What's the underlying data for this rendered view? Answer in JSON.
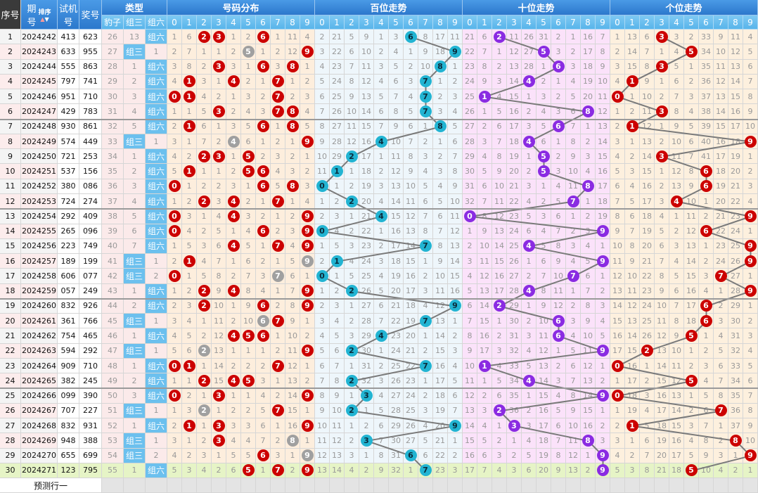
{
  "headers": {
    "seq": "序号",
    "issue_top": "期",
    "issue_bottom": "号",
    "sort": "排序",
    "test_top": "试机",
    "test_bottom": "号",
    "draw": "奖号",
    "type": "类型",
    "dist": "号码分布",
    "hundreds": "百位走势",
    "tens": "十位走势",
    "units": "个位走势",
    "type_cols": [
      "豹子",
      "组三",
      "组六"
    ],
    "digits": [
      "0",
      "1",
      "2",
      "3",
      "4",
      "5",
      "6",
      "7",
      "8",
      "9"
    ]
  },
  "type_labels": [
    "豹子",
    "组三",
    "组六"
  ],
  "rows": [
    {
      "seq": "1",
      "issue": "2024242",
      "test": "413",
      "draw": "623"
    },
    {
      "seq": "2",
      "issue": "2024243",
      "test": "633",
      "draw": "955"
    },
    {
      "seq": "3",
      "issue": "2024244",
      "test": "555",
      "draw": "863"
    },
    {
      "seq": "4",
      "issue": "2024245",
      "test": "797",
      "draw": "741"
    },
    {
      "seq": "5",
      "issue": "2024246",
      "test": "951",
      "draw": "710"
    },
    {
      "seq": "6",
      "issue": "2024247",
      "test": "429",
      "draw": "783"
    },
    {
      "seq": "7",
      "issue": "2024248",
      "test": "930",
      "draw": "861"
    },
    {
      "seq": "8",
      "issue": "2024249",
      "test": "574",
      "draw": "449"
    },
    {
      "seq": "9",
      "issue": "2024250",
      "test": "721",
      "draw": "253"
    },
    {
      "seq": "10",
      "issue": "2024251",
      "test": "537",
      "draw": "156"
    },
    {
      "seq": "11",
      "issue": "2024252",
      "test": "380",
      "draw": "086"
    },
    {
      "seq": "12",
      "issue": "2024253",
      "test": "724",
      "draw": "274"
    },
    {
      "seq": "13",
      "issue": "2024254",
      "test": "292",
      "draw": "409"
    },
    {
      "seq": "14",
      "issue": "2024255",
      "test": "265",
      "draw": "096"
    },
    {
      "seq": "15",
      "issue": "2024256",
      "test": "223",
      "draw": "749"
    },
    {
      "seq": "16",
      "issue": "2024257",
      "test": "189",
      "draw": "199"
    },
    {
      "seq": "17",
      "issue": "2024258",
      "test": "606",
      "draw": "077"
    },
    {
      "seq": "18",
      "issue": "2024259",
      "test": "057",
      "draw": "249"
    },
    {
      "seq": "19",
      "issue": "2024260",
      "test": "832",
      "draw": "926"
    },
    {
      "seq": "20",
      "issue": "2024261",
      "test": "361",
      "draw": "766"
    },
    {
      "seq": "21",
      "issue": "2024262",
      "test": "754",
      "draw": "465"
    },
    {
      "seq": "22",
      "issue": "2024263",
      "test": "594",
      "draw": "292"
    },
    {
      "seq": "23",
      "issue": "2024264",
      "test": "909",
      "draw": "710"
    },
    {
      "seq": "24",
      "issue": "2024265",
      "test": "382",
      "draw": "245"
    },
    {
      "seq": "25",
      "issue": "2024266",
      "test": "099",
      "draw": "390"
    },
    {
      "seq": "26",
      "issue": "2024267",
      "test": "707",
      "draw": "227"
    },
    {
      "seq": "27",
      "issue": "2024268",
      "test": "832",
      "draw": "931"
    },
    {
      "seq": "28",
      "issue": "2024269",
      "test": "948",
      "draw": "388"
    },
    {
      "seq": "29",
      "issue": "2024270",
      "test": "655",
      "draw": "699"
    },
    {
      "seq": "30",
      "issue": "2024271",
      "test": "123",
      "draw": "795"
    }
  ],
  "first_row_omissions": {
    "type": [
      26,
      13,
      null
    ],
    "dist": [
      1,
      6,
      null,
      null,
      1,
      2,
      null,
      1,
      11,
      4
    ],
    "hundreds": [
      2,
      21,
      5,
      9,
      1,
      3,
      null,
      8,
      17,
      11
    ],
    "tens": [
      21,
      6,
      null,
      11,
      26,
      31,
      2,
      1,
      16,
      7
    ],
    "units": [
      1,
      13,
      6,
      null,
      3,
      2,
      33,
      9,
      11,
      4
    ]
  },
  "prediction_label": "预测行一",
  "colors": {
    "dist_ball": "#cc0000",
    "dup_ball": "#a0a0a0",
    "hundreds_ball": "#22b4d2",
    "tens_ball": "#8a2be2",
    "units_ball": "#cc0000",
    "dist_bg": "#fdeedd",
    "hundreds_bg": "#eef6fb",
    "tens_bg": "#fbe2fa",
    "units_bg": "#fdf0de",
    "latest_row_bg": "#e6f4c6"
  }
}
